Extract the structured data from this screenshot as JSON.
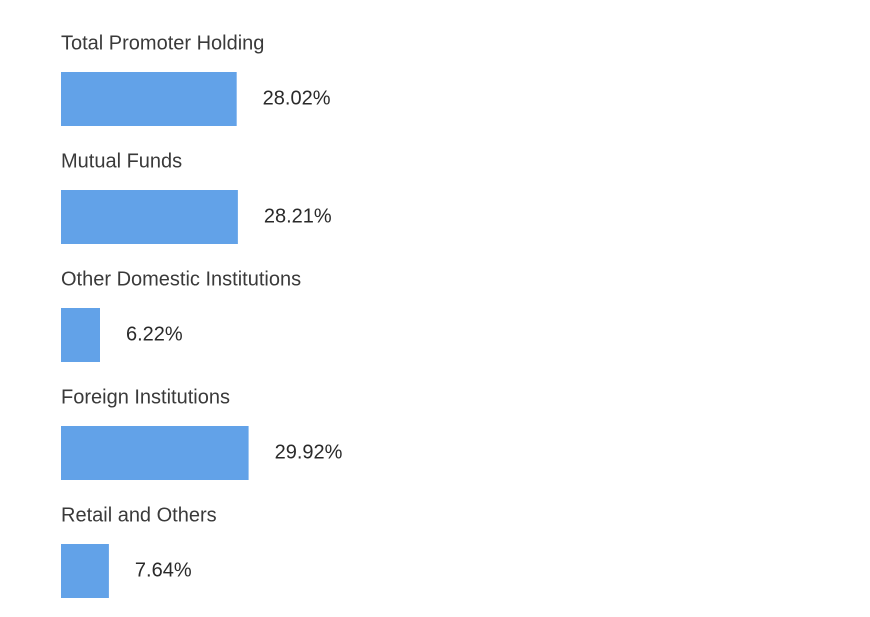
{
  "chart_data": {
    "type": "bar",
    "orientation": "horizontal",
    "categories": [
      "Total Promoter Holding",
      "Mutual Funds",
      "Other Domestic Institutions",
      "Foreign Institutions",
      "Retail and Others"
    ],
    "values": [
      28.02,
      28.21,
      6.22,
      29.92,
      7.64
    ],
    "value_labels": [
      "28.02%",
      "28.21%",
      "6.22%",
      "29.92%",
      "7.64%"
    ],
    "color": "#62a2e8"
  }
}
